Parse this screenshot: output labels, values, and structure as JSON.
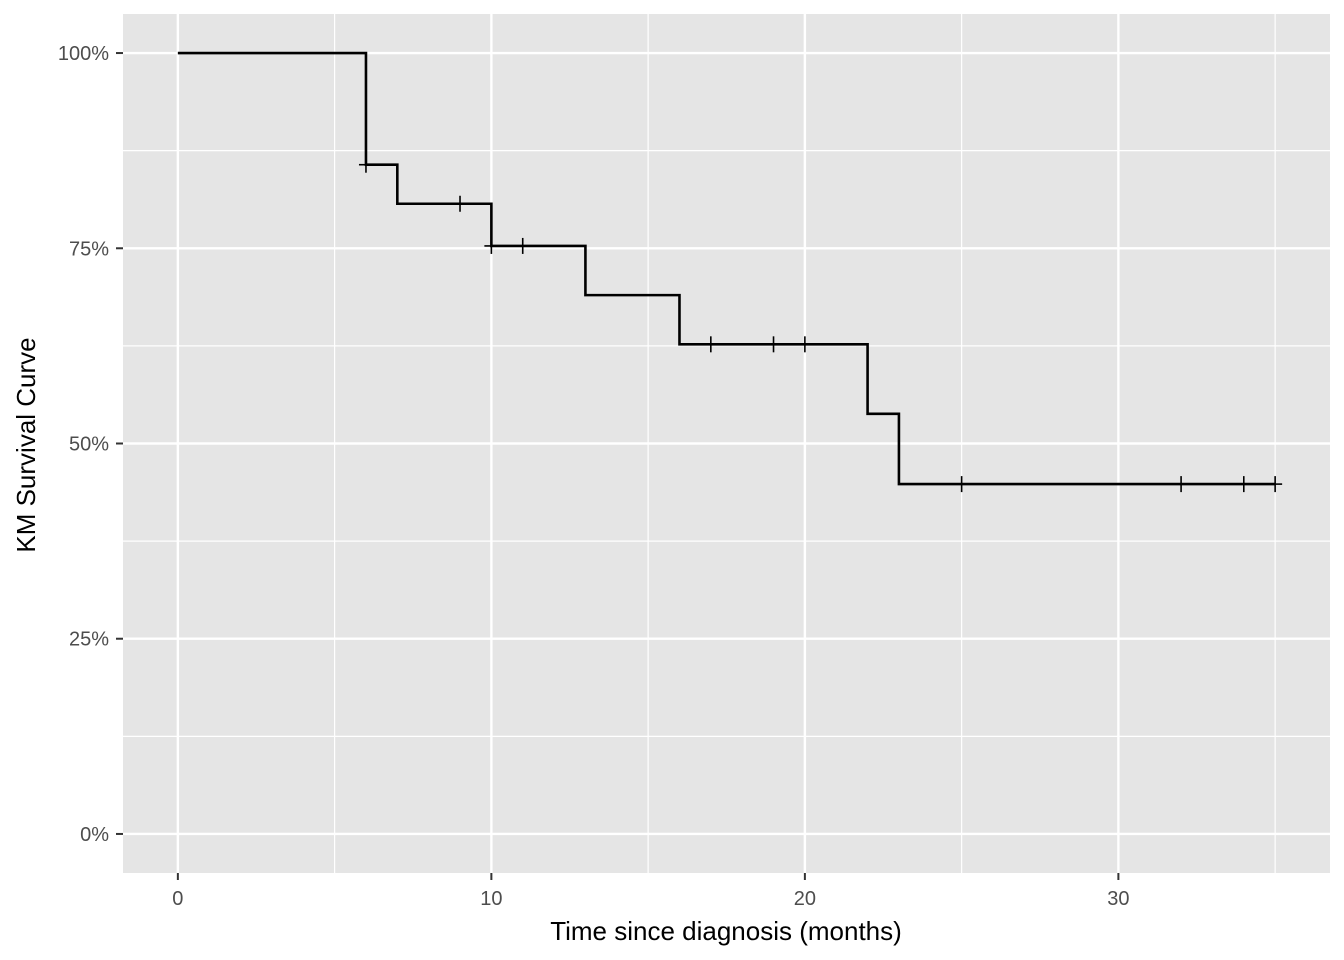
{
  "chart_data": {
    "type": "line",
    "step": true,
    "xlabel": "Time since diagnosis (months)",
    "ylabel": "KM Survival Curve",
    "xlim": [
      -1.75,
      36.75
    ],
    "ylim": [
      -0.05,
      1.05
    ],
    "x_ticks": [
      0,
      10,
      20,
      30
    ],
    "x_tick_labels": [
      "0",
      "10",
      "20",
      "30"
    ],
    "y_ticks": [
      0,
      0.25,
      0.5,
      0.75,
      1.0
    ],
    "y_tick_labels": [
      "0%",
      "25%",
      "50%",
      "75%",
      "100%"
    ],
    "grid": true,
    "panel_background": "#e5e5e5",
    "line_color": "#000000",
    "steps": [
      {
        "time": 0,
        "survival": 1.0
      },
      {
        "time": 6,
        "survival": 0.857
      },
      {
        "time": 7,
        "survival": 0.807
      },
      {
        "time": 10,
        "survival": 0.753
      },
      {
        "time": 13,
        "survival": 0.69
      },
      {
        "time": 16,
        "survival": 0.627
      },
      {
        "time": 22,
        "survival": 0.538
      },
      {
        "time": 23,
        "survival": 0.448
      },
      {
        "time": 35,
        "survival": 0.448
      }
    ],
    "censored": [
      {
        "time": 6,
        "survival": 0.857
      },
      {
        "time": 9,
        "survival": 0.807
      },
      {
        "time": 10,
        "survival": 0.753
      },
      {
        "time": 11,
        "survival": 0.753
      },
      {
        "time": 17,
        "survival": 0.627
      },
      {
        "time": 19,
        "survival": 0.627
      },
      {
        "time": 20,
        "survival": 0.627
      },
      {
        "time": 25,
        "survival": 0.448
      },
      {
        "time": 32,
        "survival": 0.448
      },
      {
        "time": 34,
        "survival": 0.448
      },
      {
        "time": 35,
        "survival": 0.448
      }
    ]
  }
}
